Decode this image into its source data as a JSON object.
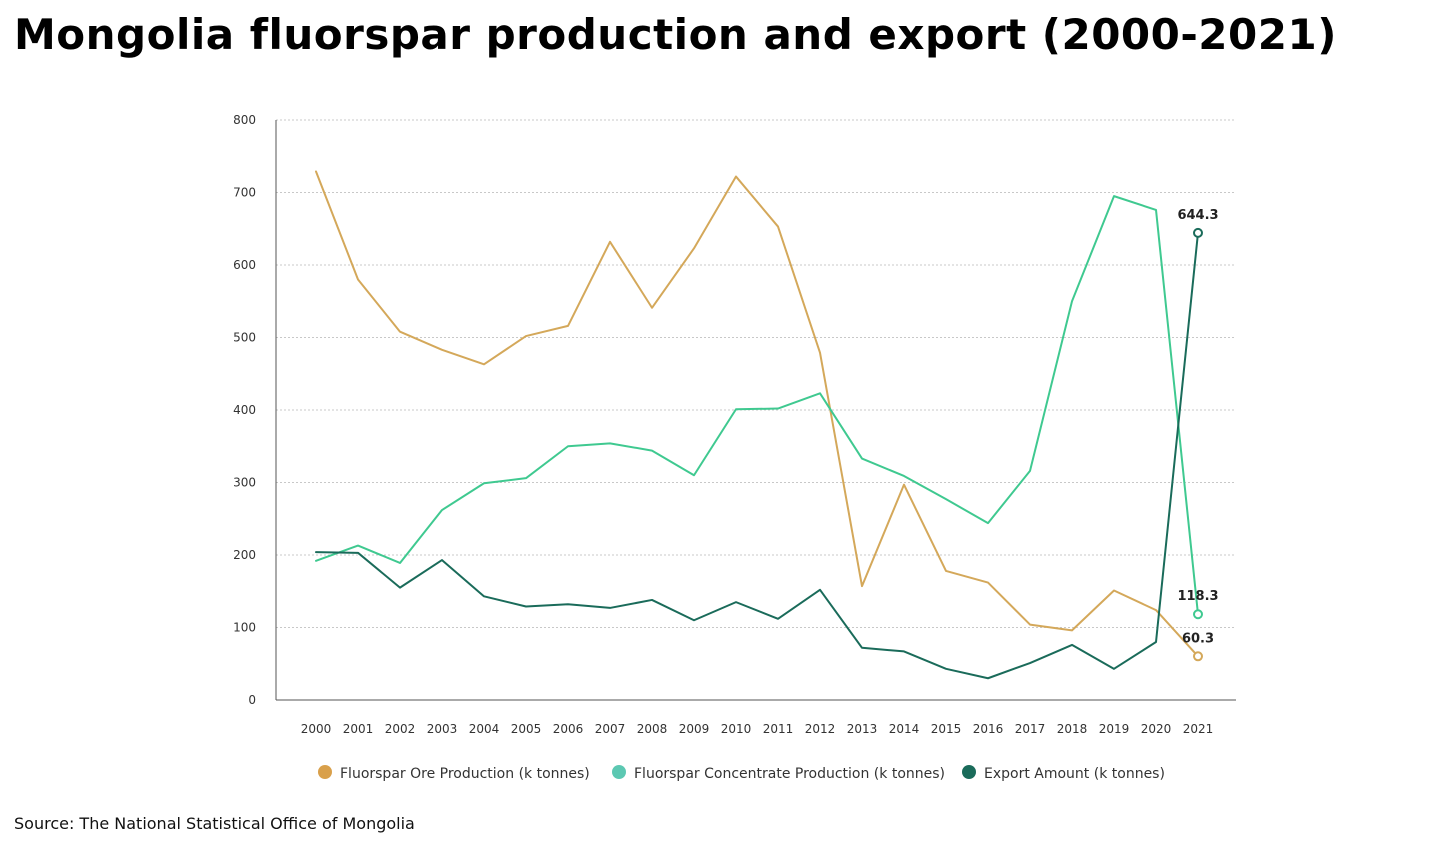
{
  "title": "Mongolia fluorspar production and export (2000-2021)",
  "source": "Source: The National Statistical Office of Mongolia",
  "chart_data": {
    "type": "line",
    "title": "Mongolia fluorspar production and export (2000-2021)",
    "xlabel": "",
    "ylabel": "",
    "ylim": [
      0,
      800
    ],
    "yticks": [
      0,
      100,
      200,
      300,
      400,
      500,
      600,
      700,
      800
    ],
    "grid": "horizontal dotted",
    "legend_position": "bottom",
    "categories": [
      "2000",
      "2001",
      "2002",
      "2003",
      "2004",
      "2005",
      "2006",
      "2007",
      "2008",
      "2009",
      "2010",
      "2011",
      "2012",
      "2013",
      "2014",
      "2015",
      "2016",
      "2017",
      "2018",
      "2019",
      "2020",
      "2021"
    ],
    "series": [
      {
        "name": "Fluorspar Ore Production (k tonnes)",
        "color": "#D4A85A",
        "marker_color": "#D9A04B",
        "values": [
          729,
          580,
          508,
          483,
          463,
          502,
          516,
          632,
          541,
          623,
          722,
          653,
          479,
          157,
          297,
          178,
          162,
          104,
          96,
          151,
          124,
          60.3
        ],
        "end_label": "60.3"
      },
      {
        "name": "Fluorspar Concentrate Production (k tonnes)",
        "color": "#3FC990",
        "marker_color": "#5CC8B2",
        "values": [
          192,
          213,
          189,
          262,
          299,
          306,
          350,
          354,
          344,
          310,
          401,
          402,
          423,
          333,
          309,
          277,
          244,
          316,
          550,
          695,
          676,
          118.3
        ],
        "end_label": "118.3"
      },
      {
        "name": "Export Amount (k tonnes)",
        "color": "#1A6B5A",
        "marker_color": "#1A6B5A",
        "values": [
          204,
          203,
          155,
          193,
          143,
          129,
          132,
          127,
          138,
          110,
          135,
          112,
          152,
          72,
          67,
          43,
          30,
          51,
          76,
          43,
          80,
          644.3
        ],
        "end_label": "644.3"
      }
    ]
  }
}
